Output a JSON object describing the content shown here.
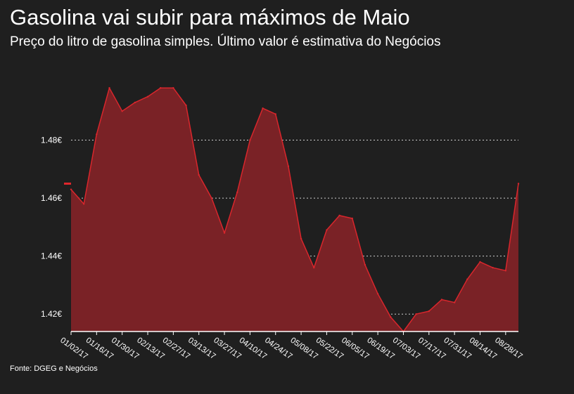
{
  "header": {
    "title": "Gasolina vai subir para máximos de Maio",
    "subtitle": "Preço do litro de gasolina simples. Último valor é estimativa do Negócios"
  },
  "footer": {
    "source": "Fonte: DGEG e Negócios"
  },
  "colors": {
    "background": "#1f1f1f",
    "line": "#d9262c",
    "fill": "#7a2226",
    "grid": "#cfcfcf",
    "marker": "#e0262c"
  },
  "chart_data": {
    "type": "area",
    "x": [
      "01/02/17",
      "01/09/17",
      "01/16/17",
      "01/23/17",
      "01/30/17",
      "02/06/17",
      "02/13/17",
      "02/20/17",
      "02/27/17",
      "03/06/17",
      "03/13/17",
      "03/20/17",
      "03/27/17",
      "04/03/17",
      "04/10/17",
      "04/17/17",
      "04/24/17",
      "05/01/17",
      "05/08/17",
      "05/15/17",
      "05/22/17",
      "05/29/17",
      "06/05/17",
      "06/12/17",
      "06/19/17",
      "06/26/17",
      "07/03/17",
      "07/10/17",
      "07/17/17",
      "07/24/17",
      "07/31/17",
      "08/07/17",
      "08/14/17",
      "08/21/17",
      "08/28/17",
      "09/04/17"
    ],
    "values": [
      1.463,
      1.458,
      1.482,
      1.498,
      1.49,
      1.493,
      1.495,
      1.498,
      1.498,
      1.492,
      1.468,
      1.46,
      1.448,
      1.462,
      1.48,
      1.491,
      1.489,
      1.471,
      1.446,
      1.436,
      1.449,
      1.454,
      1.453,
      1.437,
      1.427,
      1.419,
      1.414,
      1.42,
      1.421,
      1.425,
      1.424,
      1.432,
      1.438,
      1.436,
      1.435,
      1.465
    ],
    "x_tick_labels": [
      "01/02/17",
      "01/16/17",
      "01/30/17",
      "02/13/17",
      "02/27/17",
      "03/13/17",
      "03/27/17",
      "04/10/17",
      "04/24/17",
      "05/08/17",
      "05/22/17",
      "06/05/17",
      "06/19/17",
      "07/03/17",
      "07/17/17",
      "07/31/17",
      "08/14/17",
      "08/28/17"
    ],
    "y_ticks": [
      {
        "value": 1.42,
        "label": "1.42€"
      },
      {
        "value": 1.44,
        "label": "1.44€"
      },
      {
        "value": 1.46,
        "label": "1.46€"
      },
      {
        "value": 1.48,
        "label": "1.48€"
      }
    ],
    "ylim": [
      1.414,
      1.5
    ],
    "grid": "horizontal dotted",
    "marker_value": 1.465
  }
}
